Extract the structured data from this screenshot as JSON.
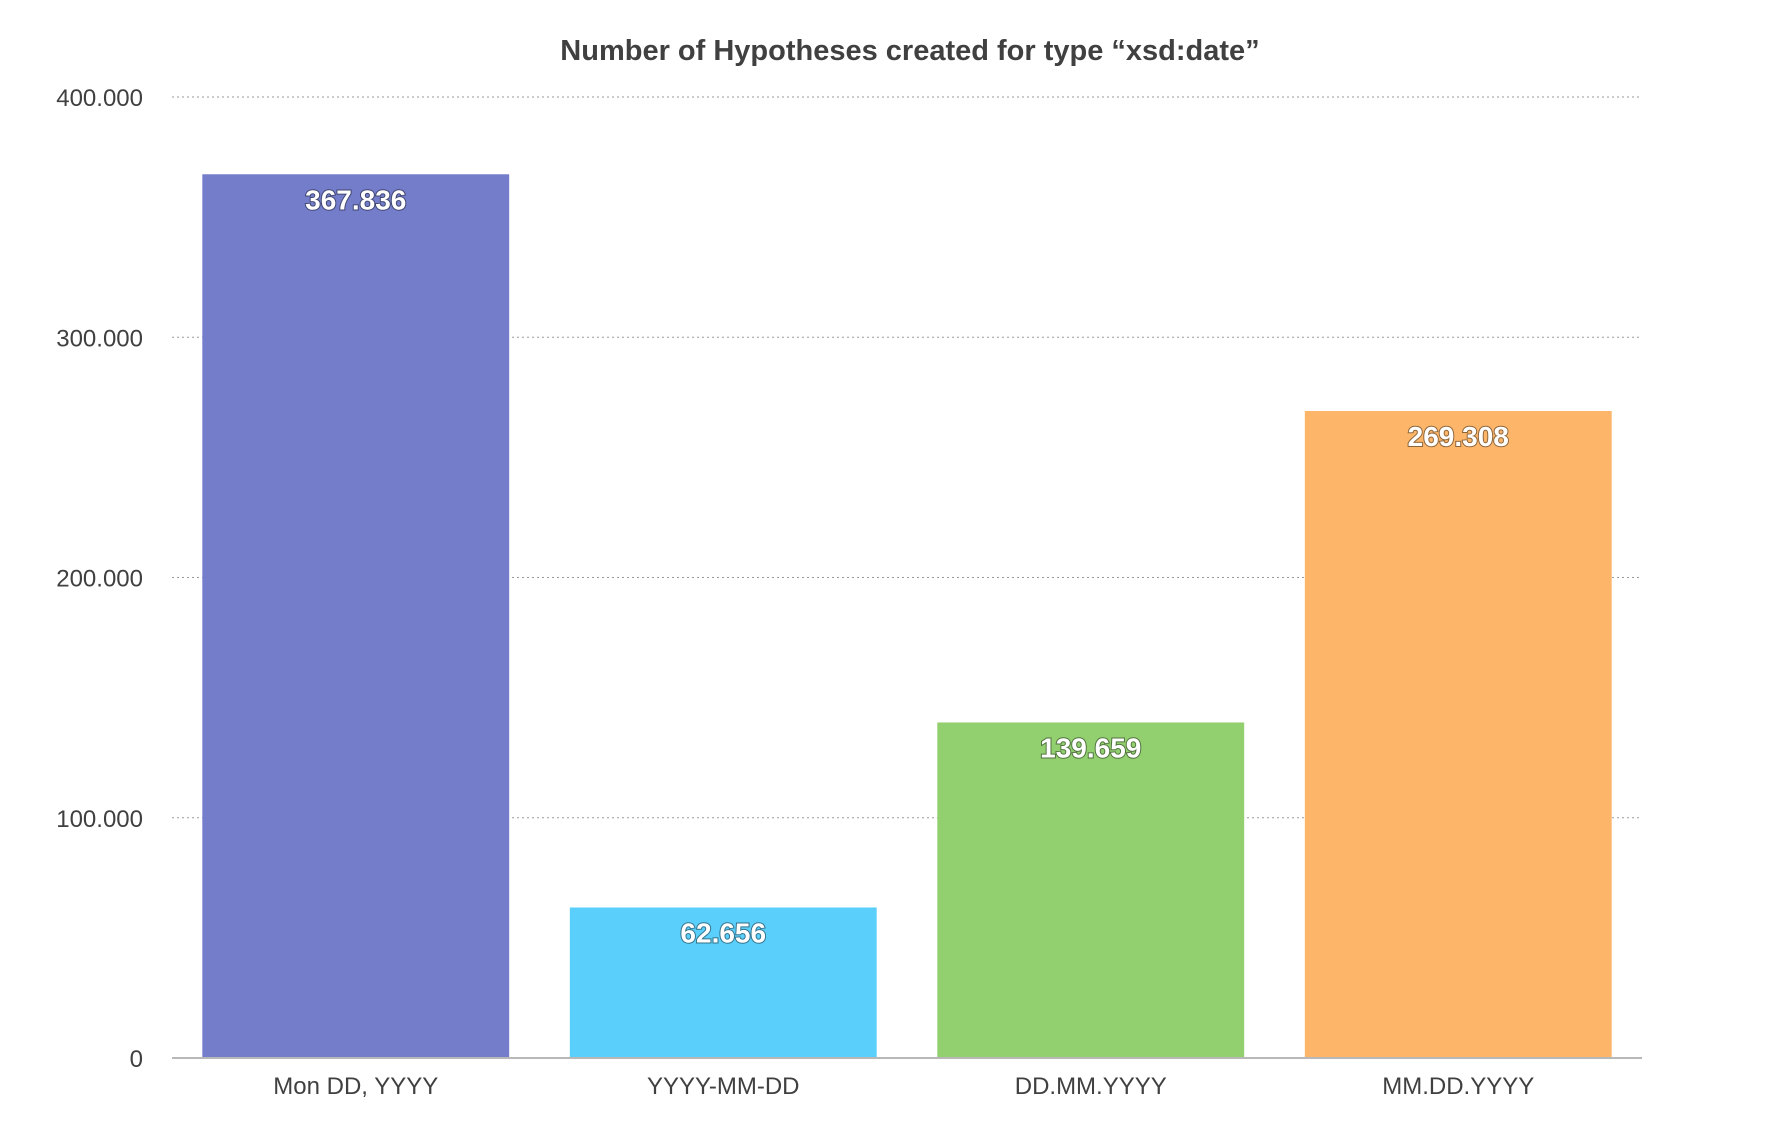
{
  "chart_data": {
    "type": "bar",
    "title": "Number of Hypotheses created for type “xsd:date”",
    "xlabel": "",
    "ylabel": "",
    "categories": [
      "Mon DD, YYYY",
      "YYYY-MM-DD",
      "DD.MM.YYYY",
      "MM.DD.YYYY"
    ],
    "values": [
      367836,
      62656,
      139659,
      269308
    ],
    "value_labels": [
      "367.836",
      "62.656",
      "139.659",
      "269.308"
    ],
    "colors": [
      "#737dca",
      "#5acffb",
      "#92cf6f",
      "#fdb669"
    ],
    "ylim": [
      0,
      400000
    ],
    "yticks": [
      0,
      100000,
      200000,
      300000,
      400000
    ],
    "ytick_labels": [
      "0",
      "100.000",
      "200.000",
      "300.000",
      "400.000"
    ],
    "grid": true,
    "legend": "none"
  }
}
